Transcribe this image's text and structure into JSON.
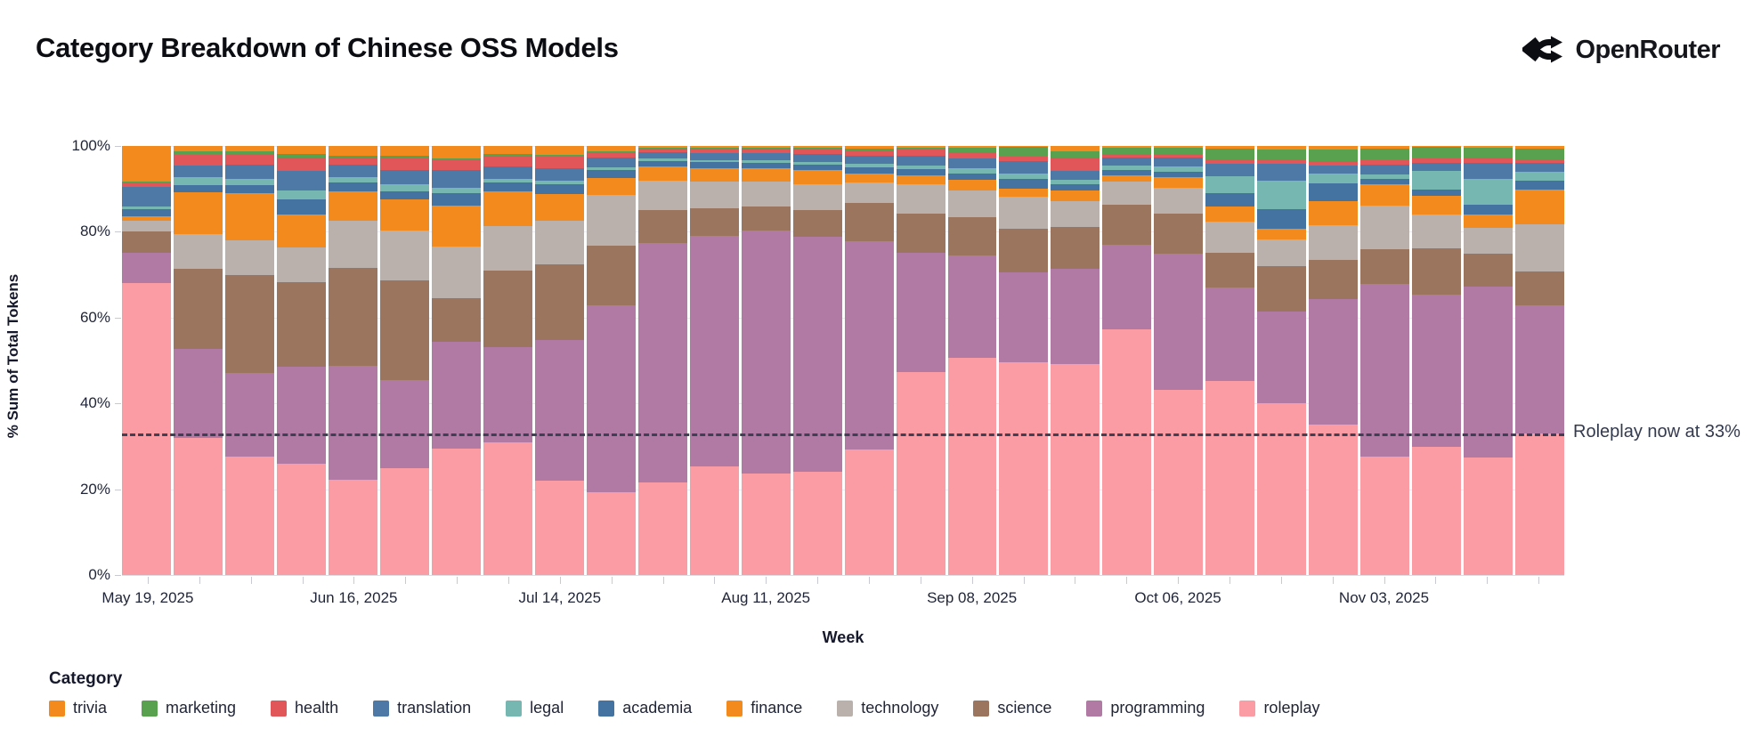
{
  "header": {
    "title": "Category Breakdown of Chinese OSS Models",
    "brand": "OpenRouter"
  },
  "annotation": {
    "text": "Roleplay now at 33%",
    "y_percent": 33
  },
  "chart_data": {
    "type": "bar",
    "stacked": true,
    "stack_order_top_to_bottom": [
      "trivia",
      "marketing",
      "health",
      "translation",
      "legal",
      "academia",
      "finance",
      "technology",
      "science",
      "programming",
      "roleplay"
    ],
    "title": "Category Breakdown of Chinese OSS Models",
    "xlabel": "Week",
    "ylabel": "% Sum of Total Tokens",
    "ylim": [
      0,
      100
    ],
    "grid": true,
    "legend_title": "Category",
    "legend_position": "bottom",
    "y_ticks": [
      "0%",
      "20%",
      "40%",
      "60%",
      "80%",
      "100%"
    ],
    "x": [
      "May 19, 2025",
      "May 26, 2025",
      "Jun 02, 2025",
      "Jun 09, 2025",
      "Jun 16, 2025",
      "Jun 23, 2025",
      "Jun 30, 2025",
      "Jul 07, 2025",
      "Jul 14, 2025",
      "Jul 21, 2025",
      "Jul 28, 2025",
      "Aug 04, 2025",
      "Aug 11, 2025",
      "Aug 18, 2025",
      "Aug 25, 2025",
      "Sep 01, 2025",
      "Sep 08, 2025",
      "Sep 15, 2025",
      "Sep 22, 2025",
      "Sep 29, 2025",
      "Oct 06, 2025",
      "Oct 13, 2025",
      "Oct 20, 2025",
      "Oct 27, 2025",
      "Nov 03, 2025",
      "Nov 10, 2025",
      "Nov 17, 2025",
      "Nov 24, 2025"
    ],
    "x_tick_indices": [
      0,
      4,
      8,
      12,
      16,
      20,
      24
    ],
    "x_tick_labels": [
      "May 19, 2025",
      "Jun 16, 2025",
      "Jul 14, 2025",
      "Aug 11, 2025",
      "Sep 08, 2025",
      "Oct 06, 2025",
      "Nov 03, 2025"
    ],
    "series": [
      {
        "name": "trivia",
        "color": "#f28a1d",
        "values": [
          8.4,
          1.2,
          1.2,
          1.8,
          2.2,
          2.2,
          2.9,
          1.8,
          2.0,
          1.2,
          0.5,
          0.5,
          0.5,
          0.5,
          0.6,
          0.5,
          0.5,
          0.2,
          1.2,
          0.5,
          0.5,
          0.7,
          0.8,
          0.9,
          0.6,
          0.3,
          0.4,
          0.6
        ]
      },
      {
        "name": "marketing",
        "color": "#59a14f",
        "values": [
          0.2,
          0.8,
          0.6,
          0.8,
          0.5,
          0.8,
          0.5,
          0.4,
          0.4,
          0.3,
          0.2,
          0.3,
          0.2,
          0.3,
          0.4,
          0.4,
          1.0,
          2.2,
          1.5,
          1.4,
          1.3,
          2.4,
          2.4,
          2.7,
          2.8,
          2.6,
          2.4,
          2.6
        ]
      },
      {
        "name": "health",
        "color": "#e15759",
        "values": [
          1.0,
          2.6,
          2.6,
          3.2,
          1.6,
          2.5,
          2.3,
          2.6,
          2.8,
          1.2,
          0.8,
          0.9,
          1.0,
          1.1,
          1.2,
          1.4,
          1.5,
          1.2,
          3.2,
          0.8,
          1.0,
          1.0,
          1.0,
          0.9,
          0.9,
          1.0,
          1.2,
          0.8
        ]
      },
      {
        "name": "translation",
        "color": "#4e79a7",
        "values": [
          4.5,
          2.6,
          3.2,
          4.6,
          3.0,
          3.5,
          4.0,
          2.8,
          2.8,
          2.2,
          1.5,
          1.6,
          1.7,
          1.8,
          2.0,
          2.2,
          2.2,
          2.8,
          2.0,
          1.8,
          2.0,
          3.0,
          3.8,
          2.0,
          2.3,
          2.0,
          3.7,
          2.0
        ]
      },
      {
        "name": "legal",
        "color": "#76b7b2",
        "values": [
          0.6,
          2.0,
          1.5,
          2.1,
          1.2,
          1.5,
          1.3,
          1.0,
          1.0,
          0.8,
          0.5,
          0.5,
          0.5,
          0.6,
          0.7,
          0.8,
          1.2,
          1.3,
          1.0,
          1.0,
          1.2,
          4.0,
          6.7,
          2.2,
          1.0,
          4.2,
          6.0,
          2.1
        ]
      },
      {
        "name": "academia",
        "color": "#4573a1",
        "values": [
          1.6,
          1.5,
          1.8,
          3.5,
          2.0,
          2.0,
          3.0,
          2.0,
          2.3,
          1.8,
          1.2,
          1.3,
          1.3,
          1.4,
          1.5,
          1.6,
          1.5,
          2.3,
          1.5,
          1.4,
          1.2,
          3.0,
          4.5,
          4.1,
          1.4,
          1.5,
          2.2,
          2.1
        ]
      },
      {
        "name": "finance",
        "color": "#f28a1d",
        "values": [
          1.1,
          9.8,
          11.1,
          7.7,
          7.0,
          7.3,
          9.5,
          8.1,
          6.1,
          3.9,
          3.3,
          3.2,
          3.0,
          3.2,
          2.1,
          2.1,
          2.5,
          1.8,
          2.5,
          1.4,
          2.5,
          3.6,
          2.5,
          5.6,
          4.9,
          4.4,
          3.2,
          8.0
        ]
      },
      {
        "name": "technology",
        "color": "#bab0ac",
        "values": [
          2.6,
          8.1,
          8.1,
          8.1,
          10.9,
          11.6,
          12.0,
          10.4,
          10.2,
          11.9,
          6.9,
          6.3,
          6.0,
          6.0,
          4.8,
          6.7,
          6.3,
          7.4,
          5.9,
          5.3,
          6.0,
          7.3,
          6.3,
          8.1,
          10.1,
          7.8,
          6.0,
          11.0
        ]
      },
      {
        "name": "science",
        "color": "#9c755f",
        "values": [
          5.0,
          18.7,
          22.9,
          19.6,
          22.9,
          23.2,
          10.1,
          17.8,
          17.6,
          13.8,
          7.8,
          6.3,
          5.5,
          6.2,
          8.9,
          9.1,
          8.8,
          10.2,
          9.9,
          9.4,
          9.4,
          7.9,
          10.5,
          9.1,
          8.1,
          10.8,
          7.7,
          8.0
        ]
      },
      {
        "name": "programming",
        "color": "#b07aa4",
        "values": [
          7.0,
          20.7,
          19.5,
          22.6,
          26.5,
          20.4,
          25.0,
          22.2,
          32.9,
          43.6,
          55.8,
          53.7,
          56.6,
          54.9,
          48.5,
          27.8,
          23.9,
          21.1,
          22.1,
          19.7,
          31.7,
          21.8,
          21.5,
          29.4,
          40.2,
          35.6,
          39.9,
          29.8
        ]
      },
      {
        "name": "roleplay",
        "color": "#fb9ca5",
        "values": [
          68.0,
          32.0,
          27.5,
          26.0,
          22.2,
          25.0,
          29.4,
          30.9,
          21.9,
          19.3,
          21.5,
          25.4,
          23.7,
          24.0,
          29.2,
          47.4,
          50.6,
          49.5,
          49.2,
          57.3,
          43.2,
          45.3,
          40.0,
          35.0,
          27.7,
          29.8,
          27.4,
          33.0
        ]
      }
    ]
  }
}
